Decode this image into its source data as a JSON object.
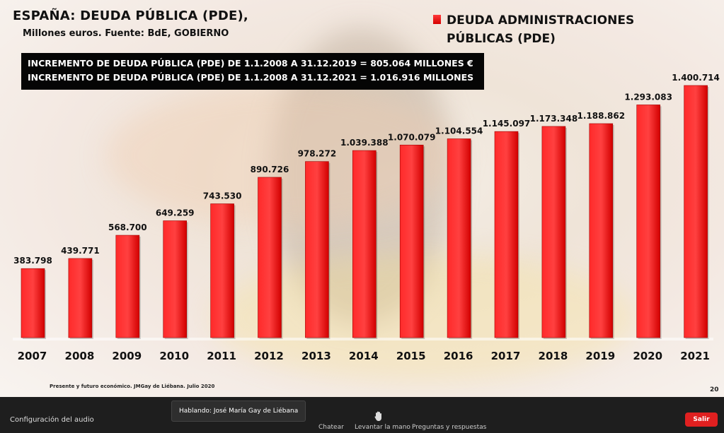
{
  "slide": {
    "title": "ESPAÑA: DEUDA PÚBLICA (PDE),",
    "subtitle": "Millones euros. Fuente: BdE, GOBIERNO",
    "note_line1": "INCREMENTO DE DEUDA PÚBLICA (PDE) DE 1.1.2008 A 31.12.2019 = 805.064 MILLONES €",
    "note_line2": "INCREMENTO DE DEUDA PÚBLICA (PDE) DE 1.1.2008 A 31.12.2021 = 1.016.916 MILLONES",
    "source": "Presente y futuro económico. JMGay de Liébana. Julio 2020",
    "page_number": "20"
  },
  "colors": {
    "bar": "#e60000",
    "bar_light": "#ff3030"
  },
  "chart_data": {
    "type": "bar",
    "title": "ESPAÑA: DEUDA PÚBLICA (PDE),",
    "subtitle": "Millones euros. Fuente: BdE, GOBIERNO",
    "xlabel": "",
    "ylabel": "",
    "legend": [
      "DEUDA ADMINISTRACIONES PÚBLICAS (PDE)"
    ],
    "legend_position": "top-right",
    "categories": [
      "2007",
      "2008",
      "2009",
      "2010",
      "2011",
      "2012",
      "2013",
      "2014",
      "2015",
      "2016",
      "2017",
      "2018",
      "2019",
      "2020",
      "2021"
    ],
    "values": [
      383798,
      439771,
      568700,
      649259,
      743530,
      890726,
      978272,
      1039388,
      1070079,
      1104554,
      1145097,
      1173348,
      1188862,
      1293083,
      1400714
    ],
    "labels": [
      "383.798",
      "439.771",
      "568.700",
      "649.259",
      "743.530",
      "890.726",
      "978.272",
      "1.039.388",
      "1.070.079",
      "1.104.554",
      "1.145.097",
      "1.173.348",
      "1.188.862",
      "1.293.083",
      "1.400.714"
    ],
    "ylim": [
      0,
      1400714
    ],
    "grid": false
  },
  "meeting": {
    "audio_settings": "Configuración del audio",
    "speaking": "Hablando: José María Gay de Liébana",
    "chat": "Chatear",
    "raise_hand": "Levantar la mano",
    "qa": "Preguntas y respuestas",
    "leave": "Salir"
  }
}
